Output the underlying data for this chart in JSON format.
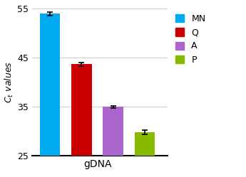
{
  "categories": [
    "MN",
    "Q",
    "A",
    "P"
  ],
  "values": [
    54.0,
    43.7,
    35.0,
    29.8
  ],
  "errors": [
    0.35,
    0.4,
    0.25,
    0.45
  ],
  "colors": [
    "#00AAEE",
    "#CC0000",
    "#AA66CC",
    "#88BB00"
  ],
  "xlabel": "gDNA",
  "ylabel": "C$_t$ values",
  "ylim": [
    25,
    55
  ],
  "yticks": [
    25,
    35,
    45,
    55
  ],
  "bar_width": 0.45,
  "legend_labels": [
    "MN",
    "Q",
    "A",
    "P"
  ],
  "background_color": "#ffffff",
  "grid_color": "#cccccc"
}
